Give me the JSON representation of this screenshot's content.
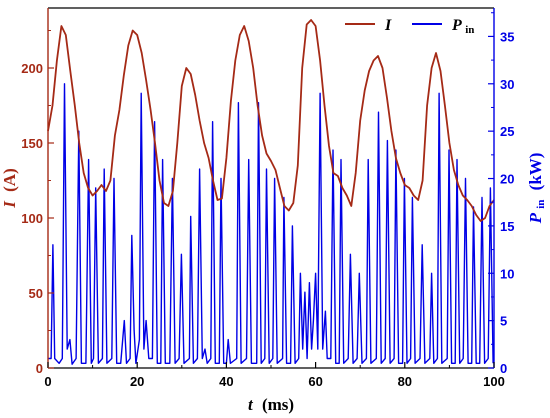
{
  "chart_data": {
    "type": "line",
    "xlabel": {
      "var": "t",
      "unit": "(ms)"
    },
    "ylabel_left": {
      "var": "I",
      "unit": "(A)"
    },
    "ylabel_right": {
      "var": "P",
      "sub": "in",
      "unit": "(kW)"
    },
    "xlim": [
      0,
      100
    ],
    "ylim_left": [
      0,
      240
    ],
    "ylim_right": [
      0,
      38
    ],
    "x_ticks": [
      0,
      20,
      40,
      60,
      80,
      100
    ],
    "y_left_ticks": [
      0,
      50,
      100,
      150,
      200
    ],
    "y_right_ticks": [
      0,
      5,
      10,
      15,
      20,
      25,
      30,
      35
    ],
    "grid": false,
    "legend_position": "top-right",
    "colors": {
      "current": "#a52a16",
      "power": "#0000e6",
      "axis_left": "#a52a16",
      "axis_right": "#0000e6",
      "axis_bottom": "#000000"
    },
    "series": [
      {
        "name": "I",
        "axis": "left",
        "points": [
          [
            0,
            158
          ],
          [
            1,
            175
          ],
          [
            2,
            205
          ],
          [
            3,
            228
          ],
          [
            4,
            222
          ],
          [
            5,
            198
          ],
          [
            6,
            175
          ],
          [
            7,
            150
          ],
          [
            8,
            130
          ],
          [
            9,
            120
          ],
          [
            10,
            115
          ],
          [
            11,
            118
          ],
          [
            12,
            122
          ],
          [
            13,
            118
          ],
          [
            14,
            125
          ],
          [
            15,
            155
          ],
          [
            16,
            172
          ],
          [
            17,
            195
          ],
          [
            18,
            215
          ],
          [
            19,
            225
          ],
          [
            20,
            222
          ],
          [
            21,
            210
          ],
          [
            22,
            192
          ],
          [
            23,
            172
          ],
          [
            24,
            150
          ],
          [
            25,
            125
          ],
          [
            26,
            110
          ],
          [
            27,
            108
          ],
          [
            28,
            118
          ],
          [
            29,
            150
          ],
          [
            30,
            188
          ],
          [
            31,
            200
          ],
          [
            32,
            196
          ],
          [
            33,
            182
          ],
          [
            34,
            165
          ],
          [
            35,
            150
          ],
          [
            36,
            140
          ],
          [
            37,
            125
          ],
          [
            38,
            112
          ],
          [
            39,
            113
          ],
          [
            40,
            140
          ],
          [
            41,
            178
          ],
          [
            42,
            205
          ],
          [
            43,
            222
          ],
          [
            44,
            228
          ],
          [
            45,
            218
          ],
          [
            46,
            200
          ],
          [
            47,
            175
          ],
          [
            48,
            155
          ],
          [
            49,
            143
          ],
          [
            50,
            138
          ],
          [
            51,
            132
          ],
          [
            52,
            120
          ],
          [
            53,
            108
          ],
          [
            54,
            105
          ],
          [
            55,
            110
          ],
          [
            56,
            135
          ],
          [
            57,
            200
          ],
          [
            58,
            229
          ],
          [
            59,
            232
          ],
          [
            60,
            228
          ],
          [
            61,
            205
          ],
          [
            62,
            175
          ],
          [
            63,
            148
          ],
          [
            64,
            130
          ],
          [
            65,
            128
          ],
          [
            66,
            120
          ],
          [
            67,
            115
          ],
          [
            68,
            108
          ],
          [
            69,
            130
          ],
          [
            70,
            165
          ],
          [
            71,
            185
          ],
          [
            72,
            198
          ],
          [
            73,
            205
          ],
          [
            74,
            208
          ],
          [
            75,
            200
          ],
          [
            76,
            180
          ],
          [
            77,
            158
          ],
          [
            78,
            140
          ],
          [
            79,
            130
          ],
          [
            80,
            122
          ],
          [
            81,
            120
          ],
          [
            82,
            115
          ],
          [
            83,
            112
          ],
          [
            84,
            125
          ],
          [
            85,
            175
          ],
          [
            86,
            200
          ],
          [
            87,
            210
          ],
          [
            88,
            198
          ],
          [
            89,
            175
          ],
          [
            90,
            150
          ],
          [
            91,
            132
          ],
          [
            92,
            122
          ],
          [
            93,
            115
          ],
          [
            94,
            112
          ],
          [
            95,
            108
          ],
          [
            96,
            102
          ],
          [
            97,
            98
          ],
          [
            98,
            100
          ],
          [
            99,
            108
          ],
          [
            100,
            112
          ]
        ]
      },
      {
        "name": "P",
        "name_sub": "in",
        "axis": "right",
        "points": [
          [
            0,
            1
          ],
          [
            0.7,
            1
          ],
          [
            1.1,
            13
          ],
          [
            1.5,
            1
          ],
          [
            2.5,
            0.5
          ],
          [
            3.2,
            1
          ],
          [
            3.7,
            30
          ],
          [
            4.3,
            2
          ],
          [
            4.9,
            3
          ],
          [
            5.4,
            0.4
          ],
          [
            6.3,
            1
          ],
          [
            6.9,
            25
          ],
          [
            7.5,
            0.5
          ],
          [
            8.5,
            0.5
          ],
          [
            9.1,
            22
          ],
          [
            9.7,
            0.5
          ],
          [
            10.2,
            1
          ],
          [
            10.7,
            19
          ],
          [
            11.3,
            0.5
          ],
          [
            12.2,
            1
          ],
          [
            12.6,
            21
          ],
          [
            13.2,
            0.5
          ],
          [
            14.3,
            1
          ],
          [
            14.8,
            20
          ],
          [
            15.4,
            0.5
          ],
          [
            16.3,
            0.5
          ],
          [
            17.1,
            5
          ],
          [
            17.6,
            0.5
          ],
          [
            18.4,
            1
          ],
          [
            18.8,
            14
          ],
          [
            19.3,
            4
          ],
          [
            19.7,
            0.5
          ],
          [
            20.5,
            3
          ],
          [
            20.9,
            29
          ],
          [
            21.5,
            2
          ],
          [
            22.0,
            5
          ],
          [
            22.6,
            1
          ],
          [
            23.4,
            1
          ],
          [
            23.9,
            26
          ],
          [
            24.5,
            0.5
          ],
          [
            25.3,
            0.5
          ],
          [
            25.7,
            22
          ],
          [
            26.3,
            0.5
          ],
          [
            27.3,
            0.5
          ],
          [
            27.9,
            20
          ],
          [
            28.5,
            0.5
          ],
          [
            29.4,
            1
          ],
          [
            29.9,
            12
          ],
          [
            30.5,
            0.5
          ],
          [
            31.7,
            1
          ],
          [
            32.0,
            16
          ],
          [
            32.6,
            0.5
          ],
          [
            33.5,
            1
          ],
          [
            34.0,
            21
          ],
          [
            34.6,
            1
          ],
          [
            35.2,
            2
          ],
          [
            35.7,
            0.5
          ],
          [
            36.5,
            1
          ],
          [
            36.9,
            26
          ],
          [
            37.5,
            0.5
          ],
          [
            38.4,
            0.5
          ],
          [
            38.8,
            20
          ],
          [
            39.4,
            0.5
          ],
          [
            40.0,
            0.5
          ],
          [
            40.4,
            3
          ],
          [
            40.9,
            0.5
          ],
          [
            42.3,
            1
          ],
          [
            42.7,
            28
          ],
          [
            43.3,
            0.5
          ],
          [
            44.5,
            1
          ],
          [
            45.0,
            22
          ],
          [
            45.6,
            0.5
          ],
          [
            46.8,
            0.5
          ],
          [
            47.2,
            28
          ],
          [
            47.8,
            0.5
          ],
          [
            48.6,
            1
          ],
          [
            49.0,
            21
          ],
          [
            49.6,
            0.5
          ],
          [
            50.4,
            1
          ],
          [
            50.8,
            20
          ],
          [
            51.4,
            0.5
          ],
          [
            52.6,
            1
          ],
          [
            52.9,
            18
          ],
          [
            53.5,
            0.5
          ],
          [
            54.4,
            0.5
          ],
          [
            54.8,
            15
          ],
          [
            55.4,
            0.5
          ],
          [
            56.2,
            1
          ],
          [
            56.6,
            10
          ],
          [
            57.1,
            2
          ],
          [
            57.6,
            8
          ],
          [
            58.1,
            1
          ],
          [
            58.6,
            9
          ],
          [
            59.1,
            2
          ],
          [
            59.5,
            5
          ],
          [
            60.0,
            10
          ],
          [
            60.5,
            2
          ],
          [
            61.0,
            29
          ],
          [
            61.6,
            2
          ],
          [
            62.2,
            6
          ],
          [
            62.6,
            1
          ],
          [
            63.4,
            1
          ],
          [
            63.9,
            23
          ],
          [
            64.5,
            0.5
          ],
          [
            65.3,
            0.5
          ],
          [
            65.7,
            22
          ],
          [
            66.3,
            0.5
          ],
          [
            67.3,
            1
          ],
          [
            67.8,
            12
          ],
          [
            68.4,
            0.5
          ],
          [
            69.3,
            1
          ],
          [
            69.8,
            10
          ],
          [
            70.4,
            0.5
          ],
          [
            71.4,
            1
          ],
          [
            71.8,
            22
          ],
          [
            72.4,
            0.5
          ],
          [
            73.6,
            1
          ],
          [
            74.1,
            27
          ],
          [
            74.7,
            0.5
          ],
          [
            75.6,
            1
          ],
          [
            76.1,
            24
          ],
          [
            76.7,
            0.5
          ],
          [
            77.6,
            1
          ],
          [
            78.0,
            23
          ],
          [
            78.6,
            0.5
          ],
          [
            79.5,
            0.5
          ],
          [
            79.9,
            20
          ],
          [
            80.5,
            0.5
          ],
          [
            81.3,
            1
          ],
          [
            81.7,
            18
          ],
          [
            82.3,
            0.5
          ],
          [
            83.4,
            1
          ],
          [
            83.9,
            13
          ],
          [
            84.5,
            0.5
          ],
          [
            85.6,
            1
          ],
          [
            86.0,
            10
          ],
          [
            86.5,
            0.5
          ],
          [
            87.3,
            1
          ],
          [
            87.7,
            29
          ],
          [
            88.3,
            0.5
          ],
          [
            89.5,
            1
          ],
          [
            89.9,
            23
          ],
          [
            90.5,
            0.5
          ],
          [
            91.3,
            0.5
          ],
          [
            91.7,
            22
          ],
          [
            92.3,
            0.5
          ],
          [
            93.1,
            1
          ],
          [
            93.6,
            20
          ],
          [
            94.2,
            0.5
          ],
          [
            95.0,
            0.5
          ],
          [
            95.4,
            17
          ],
          [
            96.0,
            0.5
          ],
          [
            96.8,
            0.5
          ],
          [
            97.3,
            18
          ],
          [
            97.9,
            0.5
          ],
          [
            98.7,
            1
          ],
          [
            99.2,
            19
          ],
          [
            99.8,
            0.5
          ]
        ]
      }
    ]
  }
}
